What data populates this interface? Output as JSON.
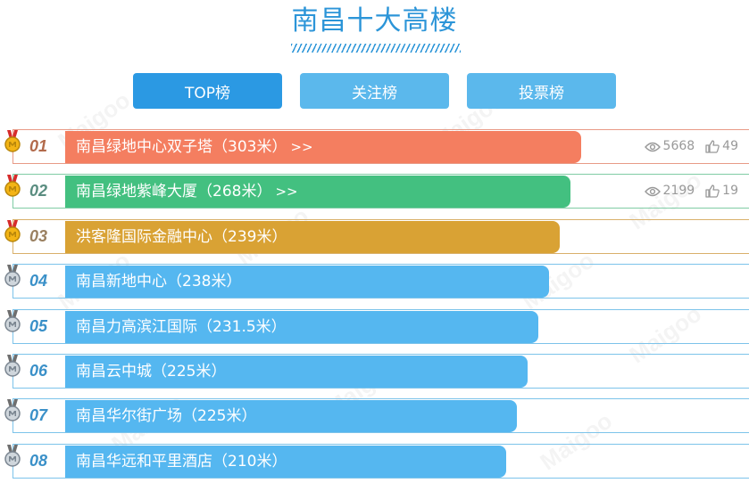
{
  "page": {
    "title": "南昌十大高楼",
    "watermark": "Maigoo"
  },
  "tabs": [
    {
      "label": "TOP榜",
      "active": true
    },
    {
      "label": "关注榜",
      "active": false
    },
    {
      "label": "投票榜",
      "active": false
    }
  ],
  "rows": [
    {
      "rank": "01",
      "name": "南昌绿地中心双子塔（303米）",
      "arrows": ">>",
      "views": "5668",
      "likes": "49",
      "color": "#f47e60",
      "border": "#e89a86",
      "rank_color": "#b26a4b",
      "medal": "gold",
      "bar_width": 578
    },
    {
      "rank": "02",
      "name": "南昌绿地紫峰大厦（268米）",
      "arrows": ">>",
      "views": "2199",
      "likes": "19",
      "color": "#43c080",
      "border": "#7fcca4",
      "rank_color": "#5a8d80",
      "medal": "gold",
      "bar_width": 566
    },
    {
      "rank": "03",
      "name": "洪客隆国际金融中心（239米）",
      "arrows": "",
      "views": "",
      "likes": "",
      "color": "#d9a234",
      "border": "#d9b06a",
      "rank_color": "#9a8060",
      "medal": "gold",
      "bar_width": 554
    },
    {
      "rank": "04",
      "name": "南昌新地中心（238米）",
      "arrows": "",
      "views": "",
      "likes": "",
      "color": "#55b7f0",
      "border": "#7cc3ea",
      "rank_color": "#3a90c8",
      "medal": "silver",
      "bar_width": 542
    },
    {
      "rank": "05",
      "name": "南昌力高滨江国际（231.5米）",
      "arrows": "",
      "views": "",
      "likes": "",
      "color": "#55b7f0",
      "border": "#7cc3ea",
      "rank_color": "#3a90c8",
      "medal": "silver",
      "bar_width": 530
    },
    {
      "rank": "06",
      "name": "南昌云中城（225米）",
      "arrows": "",
      "views": "",
      "likes": "",
      "color": "#55b7f0",
      "border": "#7cc3ea",
      "rank_color": "#3a90c8",
      "medal": "silver",
      "bar_width": 518
    },
    {
      "rank": "07",
      "name": "南昌华尔街广场（225米）",
      "arrows": "",
      "views": "",
      "likes": "",
      "color": "#55b7f0",
      "border": "#7cc3ea",
      "rank_color": "#3a90c8",
      "medal": "silver",
      "bar_width": 506
    },
    {
      "rank": "08",
      "name": "南昌华远和平里酒店（210米）",
      "arrows": "",
      "views": "",
      "likes": "",
      "color": "#55b7f0",
      "border": "#7cc3ea",
      "rank_color": "#3a90c8",
      "medal": "silver",
      "bar_width": 494
    }
  ],
  "icons": {
    "views": "eye-icon",
    "likes": "thumbs-up-icon",
    "medal_gold": "gold-medal-icon",
    "medal_silver": "silver-medal-icon"
  }
}
